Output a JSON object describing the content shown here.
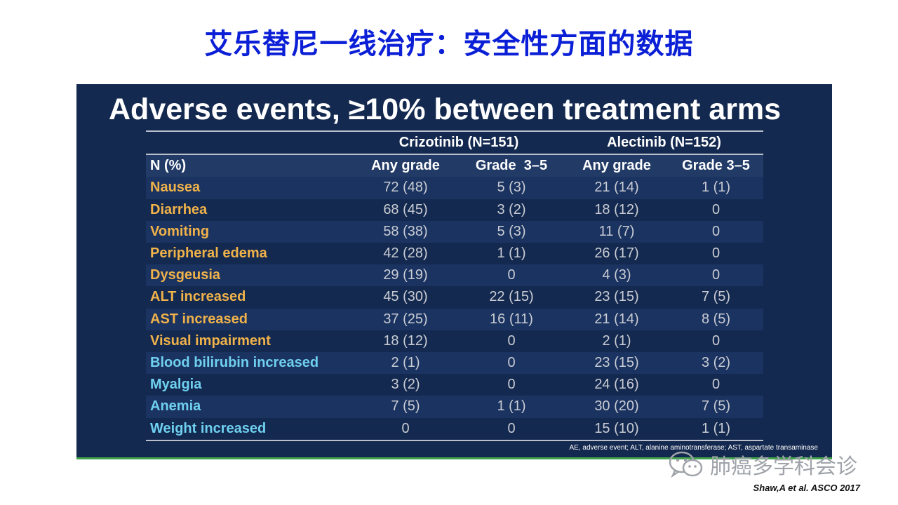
{
  "slide": {
    "title": "艾乐替尼一线治疗：安全性方面的数据",
    "citation": "Shaw,A et al. ASCO 2017",
    "watermark": "肺癌多学科会诊"
  },
  "panel": {
    "heading": "Adverse events, ≥10% between treatment arms",
    "footnote": "AE, adverse event; ALT, alanine aminotransferase; AST, aspartate transaminase"
  },
  "table": {
    "arms": [
      {
        "label": "Crizotinib (N=151)"
      },
      {
        "label": "Alectinib (N=152)"
      }
    ],
    "columns": [
      "N (%)",
      "Any grade",
      "Grade  3–5",
      "Any grade",
      "Grade 3–5"
    ],
    "rows": [
      {
        "name": "Nausea",
        "group": "orange",
        "values": [
          "72 (48)",
          "5 (3)",
          "21 (14)",
          "1 (1)"
        ]
      },
      {
        "name": "Diarrhea",
        "group": "orange",
        "values": [
          "68 (45)",
          "3 (2)",
          "18 (12)",
          "0"
        ]
      },
      {
        "name": "Vomiting",
        "group": "orange",
        "values": [
          "58 (38)",
          "5 (3)",
          "11 (7)",
          "0"
        ]
      },
      {
        "name": "Peripheral edema",
        "group": "orange",
        "values": [
          "42 (28)",
          "1 (1)",
          "26 (17)",
          "0"
        ]
      },
      {
        "name": "Dysgeusia",
        "group": "orange",
        "values": [
          "29 (19)",
          "0",
          "4 (3)",
          "0"
        ]
      },
      {
        "name": "ALT increased",
        "group": "orange",
        "values": [
          "45 (30)",
          "22 (15)",
          "23 (15)",
          "7 (5)"
        ]
      },
      {
        "name": "AST increased",
        "group": "orange",
        "values": [
          "37 (25)",
          "16 (11)",
          "21 (14)",
          "8 (5)"
        ]
      },
      {
        "name": "Visual impairment",
        "group": "orange",
        "values": [
          "18 (12)",
          "0",
          "2 (1)",
          "0"
        ]
      },
      {
        "name": "Blood bilirubin increased",
        "group": "cyan",
        "values": [
          "2 (1)",
          "0",
          "23 (15)",
          "3 (2)"
        ]
      },
      {
        "name": "Myalgia",
        "group": "cyan",
        "values": [
          "3 (2)",
          "0",
          "24 (16)",
          "0"
        ]
      },
      {
        "name": "Anemia",
        "group": "cyan",
        "values": [
          "7 (5)",
          "1 (1)",
          "30 (20)",
          "7 (5)"
        ]
      },
      {
        "name": "Weight increased",
        "group": "cyan",
        "values": [
          "0",
          "0",
          "15 (10)",
          "1 (1)"
        ]
      }
    ]
  },
  "colors": {
    "title": "#0a1fd6",
    "panel_bg": "#14294f",
    "orange_label": "#f0b24a",
    "cyan_label": "#6fd0f0",
    "accent_line": "#3fa24a"
  },
  "icons": {
    "watermark_icon": "wechat-icon"
  }
}
